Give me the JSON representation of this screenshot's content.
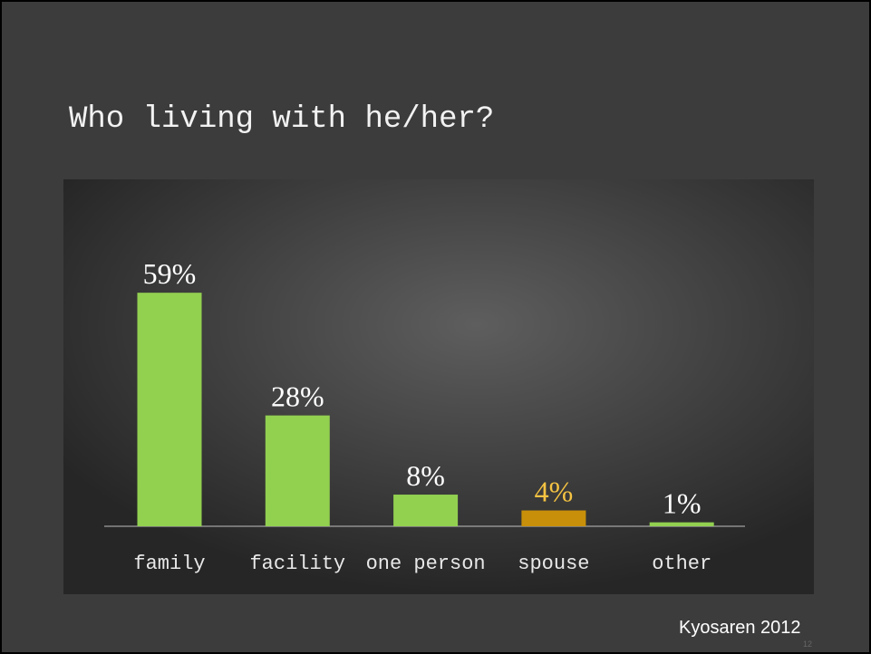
{
  "title": "Who living with he/her?",
  "chart_data": {
    "type": "bar",
    "categories": [
      "family",
      "facility",
      "one person",
      "spouse",
      "other"
    ],
    "values": [
      59,
      28,
      8,
      4,
      1
    ],
    "value_labels": [
      "59%",
      "28%",
      "8%",
      "4%",
      "1%"
    ],
    "colors": [
      "#92d050",
      "#92d050",
      "#92d050",
      "#c8900a",
      "#92d050"
    ],
    "label_colors": [
      "#ffffff",
      "#ffffff",
      "#ffffff",
      "#f5c342",
      "#ffffff"
    ]
  },
  "source": "Kyosaren 2012",
  "page_number": "12"
}
